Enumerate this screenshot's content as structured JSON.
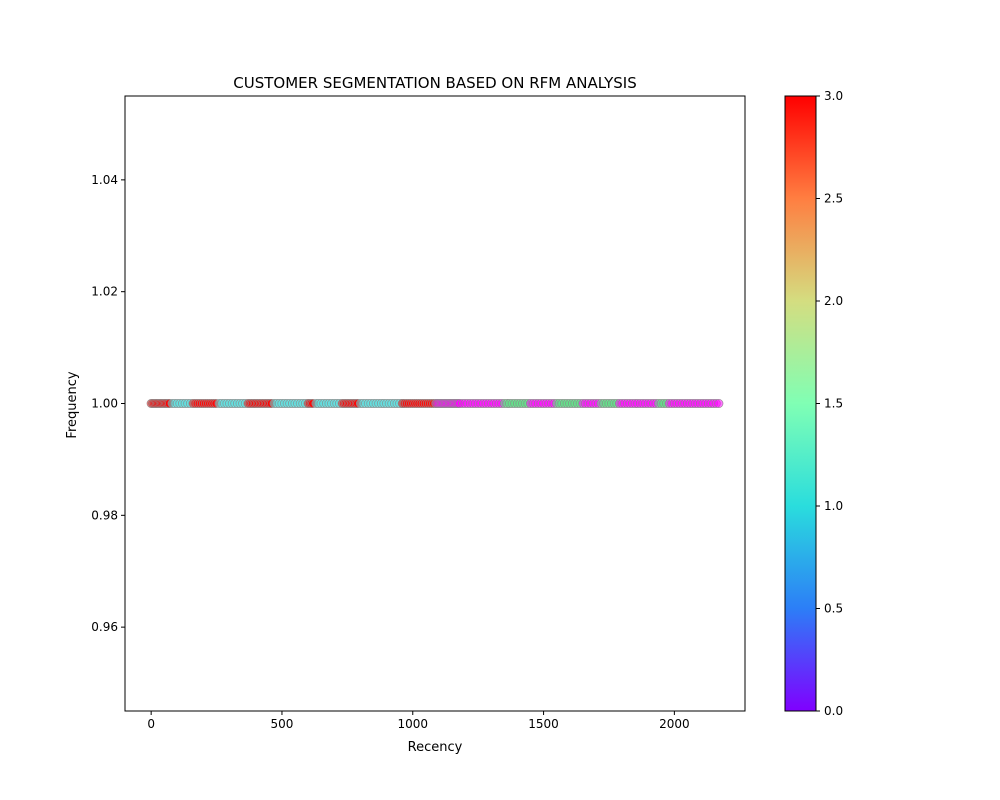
{
  "chart_data": {
    "type": "scatter",
    "title": "CUSTOMER SEGMENTATION BASED ON RFM ANALYSIS",
    "xlabel": "Recency",
    "ylabel": "Frequency",
    "xlim": [
      -100,
      2270
    ],
    "ylim": [
      0.945,
      1.055
    ],
    "x_ticks": [
      0,
      500,
      1000,
      1500,
      2000
    ],
    "x_tick_labels": [
      "0",
      "500",
      "1000",
      "1500",
      "2000"
    ],
    "y_ticks": [
      0.96,
      0.98,
      1.0,
      1.02,
      1.04
    ],
    "y_tick_labels": [
      "0.96",
      "0.98",
      "1.00",
      "1.02",
      "1.04"
    ],
    "grid": false,
    "colormap": "rainbow",
    "colorbar": {
      "min": 0.0,
      "max": 3.0,
      "ticks": [
        0.0,
        0.5,
        1.0,
        1.5,
        2.0,
        2.5,
        3.0
      ],
      "tick_labels": [
        "0.0",
        "0.5",
        "1.0",
        "1.5",
        "2.0",
        "2.5",
        "3.0"
      ]
    },
    "marker": {
      "shape": "circle",
      "edge_color": "#8c8c8c",
      "alpha": 0.55
    },
    "point_groups": [
      {
        "cluster": 3,
        "frequency": 1.0,
        "recency_from": 0,
        "recency_to": 70,
        "step": 5
      },
      {
        "cluster": 1,
        "frequency": 1.0,
        "recency_from": 80,
        "recency_to": 150,
        "step": 10
      },
      {
        "cluster": 3,
        "frequency": 1.0,
        "recency_from": 160,
        "recency_to": 250,
        "step": 8
      },
      {
        "cluster": 1,
        "frequency": 1.0,
        "recency_from": 260,
        "recency_to": 360,
        "step": 10
      },
      {
        "cluster": 3,
        "frequency": 1.0,
        "recency_from": 370,
        "recency_to": 460,
        "step": 6
      },
      {
        "cluster": 1,
        "frequency": 1.0,
        "recency_from": 470,
        "recency_to": 600,
        "step": 10
      },
      {
        "cluster": 3,
        "frequency": 1.0,
        "recency_from": 600,
        "recency_to": 620,
        "step": 6
      },
      {
        "cluster": 1,
        "frequency": 1.0,
        "recency_from": 630,
        "recency_to": 720,
        "step": 10
      },
      {
        "cluster": 3,
        "frequency": 1.0,
        "recency_from": 730,
        "recency_to": 790,
        "step": 6
      },
      {
        "cluster": 1,
        "frequency": 1.0,
        "recency_from": 800,
        "recency_to": 960,
        "step": 10
      },
      {
        "cluster": 3,
        "frequency": 1.0,
        "recency_from": 960,
        "recency_to": 1090,
        "step": 8
      },
      {
        "cluster": 0,
        "frequency": 1.0,
        "recency_from": 1090,
        "recency_to": 1180,
        "step": 5
      },
      {
        "cluster": 0,
        "frequency": 1.0,
        "recency_from": 1190,
        "recency_to": 1340,
        "step": 10
      },
      {
        "cluster": 2,
        "frequency": 1.0,
        "recency_from": 1350,
        "recency_to": 1440,
        "step": 10
      },
      {
        "cluster": 0,
        "frequency": 1.0,
        "recency_from": 1450,
        "recency_to": 1540,
        "step": 10
      },
      {
        "cluster": 2,
        "frequency": 1.0,
        "recency_from": 1550,
        "recency_to": 1640,
        "step": 10
      },
      {
        "cluster": 0,
        "frequency": 1.0,
        "recency_from": 1650,
        "recency_to": 1710,
        "step": 10
      },
      {
        "cluster": 2,
        "frequency": 1.0,
        "recency_from": 1720,
        "recency_to": 1780,
        "step": 10
      },
      {
        "cluster": 0,
        "frequency": 1.0,
        "recency_from": 1790,
        "recency_to": 1930,
        "step": 10
      },
      {
        "cluster": 2,
        "frequency": 1.0,
        "recency_from": 1940,
        "recency_to": 1970,
        "step": 10
      },
      {
        "cluster": 0,
        "frequency": 1.0,
        "recency_from": 1980,
        "recency_to": 2070,
        "step": 10
      },
      {
        "cluster": 0,
        "frequency": 1.0,
        "recency_from": 2080,
        "recency_to": 2170,
        "step": 10
      }
    ]
  }
}
